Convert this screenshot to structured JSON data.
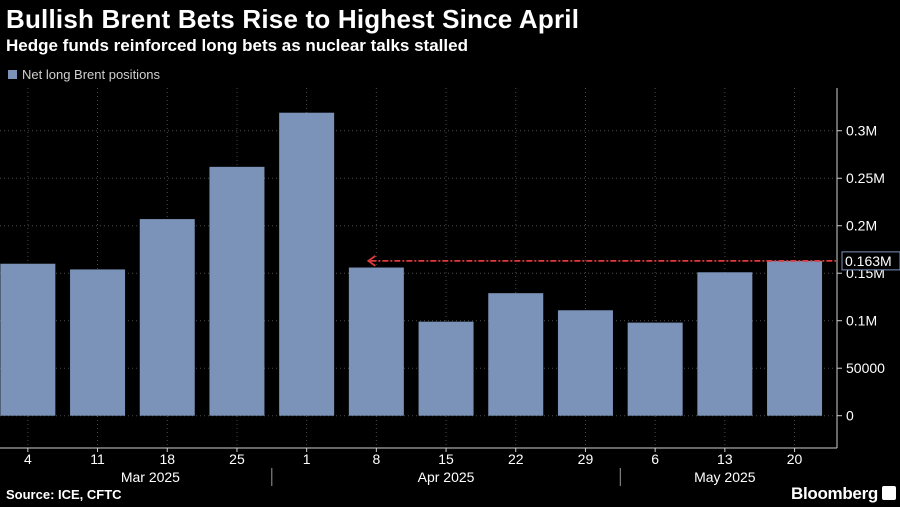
{
  "chart_data": {
    "type": "bar",
    "title": "Bullish Brent Bets Rise to Highest Since April",
    "subtitle": "Hedge funds reinforced long bets as nuclear talks stalled",
    "legend": [
      {
        "name": "Net long Brent positions",
        "color": "#7b93b9"
      }
    ],
    "categories": [
      "4",
      "11",
      "18",
      "25",
      "1",
      "8",
      "15",
      "22",
      "29",
      "6",
      "13",
      "20"
    ],
    "month_labels": [
      "Mar 2025",
      "Apr 2025",
      "May 2025"
    ],
    "values": [
      160000,
      154000,
      207000,
      262000,
      319000,
      156000,
      99000,
      129000,
      111000,
      98000,
      151000,
      163000
    ],
    "yticks": [
      0,
      50000,
      100000,
      150000,
      200000,
      250000,
      300000
    ],
    "ytick_labels": [
      "0",
      "50000",
      "0.1M",
      "0.15M",
      "0.2M",
      "0.25M",
      "0.3M"
    ],
    "ylim": [
      -34000,
      345000
    ],
    "annotation": {
      "value": 163000,
      "label": "0.163M",
      "color": "#e0393e"
    },
    "gridlines": true
  },
  "footer": {
    "source": "Source: ICE, CFTC",
    "brand": "Bloomberg"
  }
}
